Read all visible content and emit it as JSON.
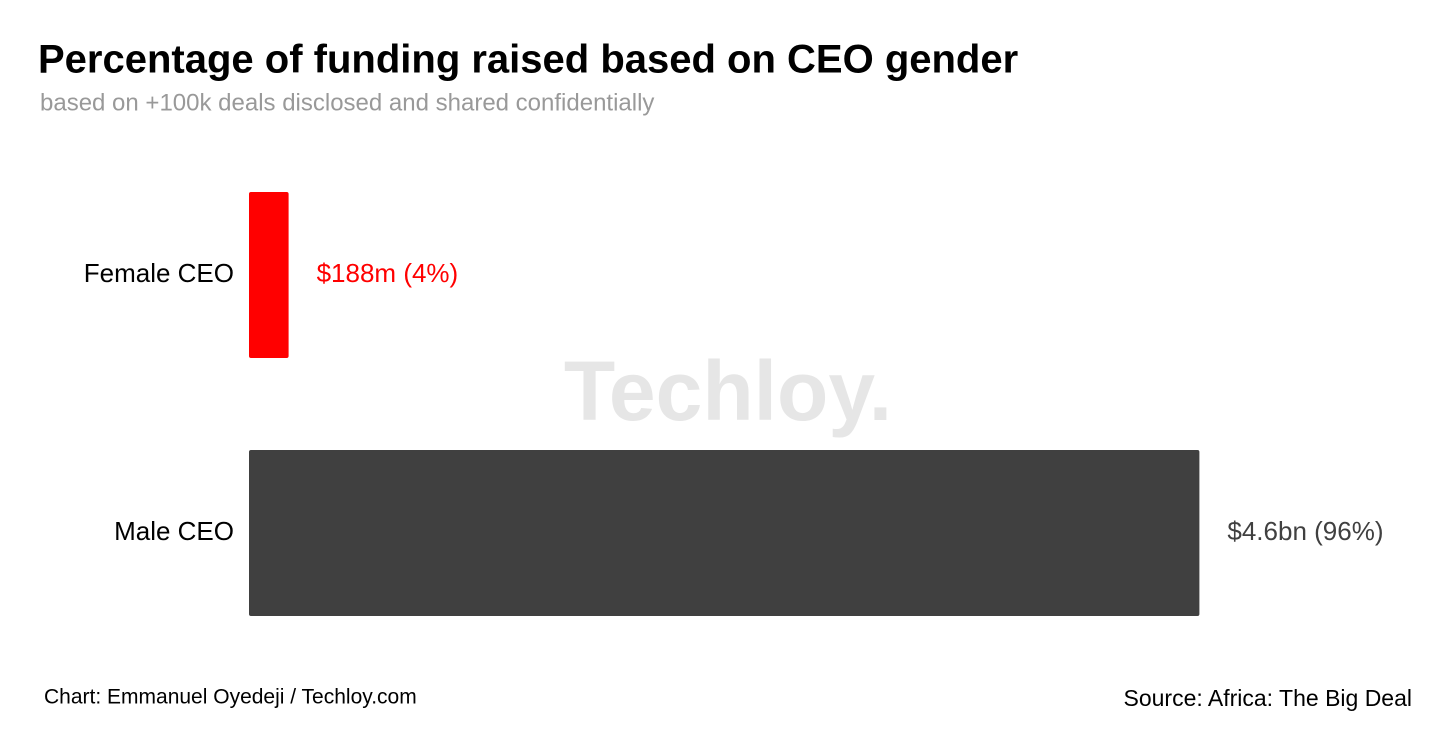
{
  "chart_data": {
    "type": "bar",
    "orientation": "horizontal",
    "title": "Percentage of funding raised based on CEO gender",
    "subtitle": "based on +100k deals disclosed and shared confidentially",
    "categories": [
      "Female CEO",
      "Male CEO"
    ],
    "values": [
      4,
      96
    ],
    "value_labels": [
      "$188m (4%)",
      "$4.6bn (96%)"
    ],
    "colors": [
      "#ff0000",
      "#404040"
    ],
    "watermark": "Techloy.",
    "credit": "Chart: Emmanuel Oyedeji / Techloy.com",
    "source": "Source: Africa: The Big Deal"
  }
}
